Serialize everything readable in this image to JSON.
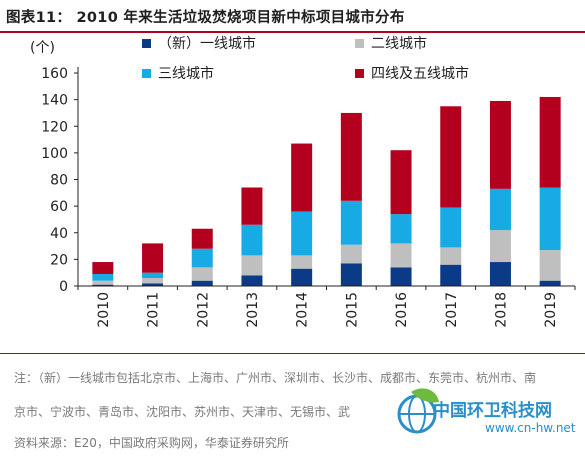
{
  "header": {
    "title": "图表11：  2010 年来生活垃圾焚烧项目新中标项目城市分布"
  },
  "chart_data": {
    "type": "bar",
    "stacked": true,
    "unit_label": "(个)",
    "categories": [
      "2010",
      "2011",
      "2012",
      "2013",
      "2014",
      "2015",
      "2016",
      "2017",
      "2018",
      "2019"
    ],
    "ylim": [
      0,
      160
    ],
    "yticks": [
      0,
      20,
      40,
      60,
      80,
      100,
      120,
      140,
      160
    ],
    "legend_position": "top",
    "grid": false,
    "series": [
      {
        "name": "（新）一线城市",
        "color": "#0b3a86",
        "values": [
          1,
          2,
          4,
          8,
          13,
          17,
          14,
          16,
          18,
          4
        ]
      },
      {
        "name": "二线城市",
        "color": "#bfbfbf",
        "values": [
          3,
          4,
          10,
          15,
          10,
          14,
          18,
          13,
          24,
          23
        ]
      },
      {
        "name": "三线城市",
        "color": "#17aae4",
        "values": [
          5,
          4,
          14,
          23,
          33,
          33,
          22,
          30,
          31,
          47
        ]
      },
      {
        "name": "四线及五线城市",
        "color": "#b3001e",
        "values": [
          9,
          22,
          15,
          28,
          51,
          66,
          48,
          76,
          66,
          68
        ]
      }
    ]
  },
  "notes": {
    "line1": "注：（新）一线城市包括北京市、上海市、广州市、深圳市、长沙市、成都市、东莞市、杭州市、南",
    "line2": "京市、宁波市、青岛市、沈阳市、苏州市、天津市、无锡市、武",
    "source": "资料来源：E20，中国政府采购网，华泰证券研究所"
  },
  "watermark": {
    "title": "中国环卫科技网",
    "url": "www.cn-hw.net"
  }
}
